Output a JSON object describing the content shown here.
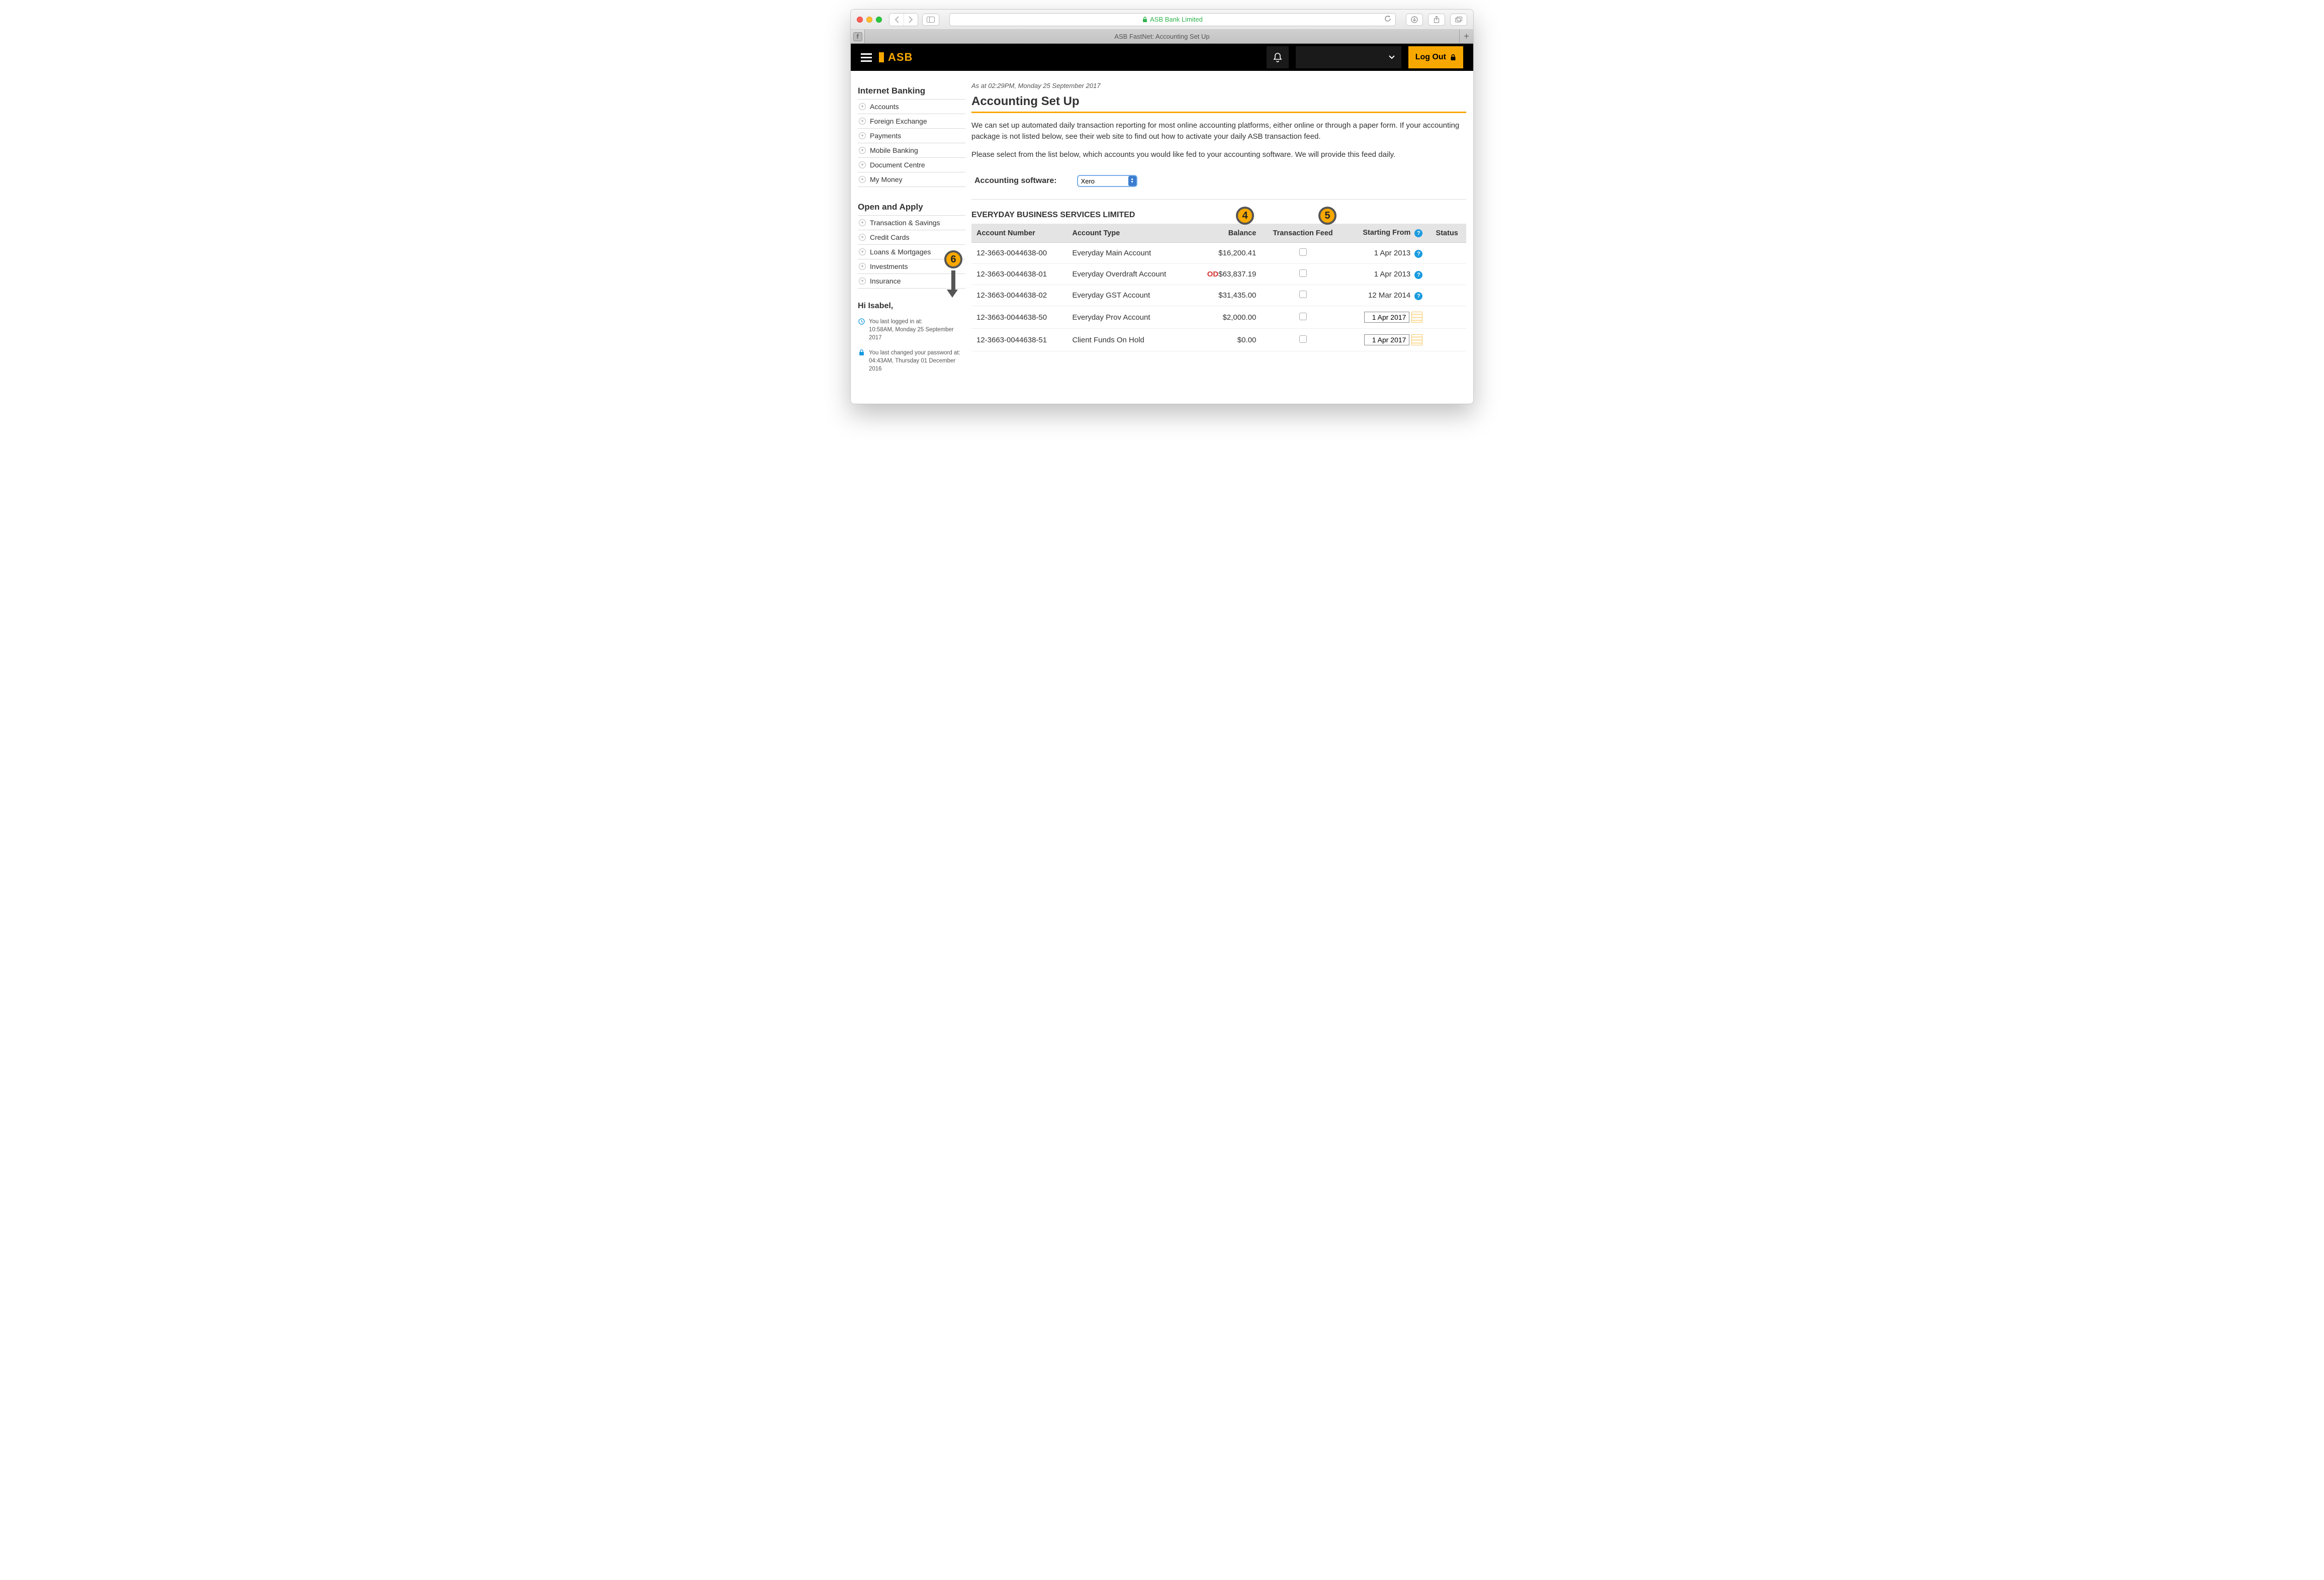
{
  "browser": {
    "site_name": "ASB Bank Limited",
    "tab_title": "ASB FastNet: Accounting Set Up"
  },
  "header": {
    "logo_text": "ASB",
    "logout_label": "Log Out"
  },
  "sidebar": {
    "section1_title": "Internet Banking",
    "section1_items": [
      "Accounts",
      "Foreign Exchange",
      "Payments",
      "Mobile Banking",
      "Document Centre",
      "My Money"
    ],
    "section2_title": "Open and Apply",
    "section2_items": [
      "Transaction & Savings",
      "Credit Cards",
      "Loans & Mortgages",
      "Investments",
      "Insurance"
    ],
    "greeting": "Hi Isabel,",
    "login_meta_label": "You last logged in at:",
    "login_meta_value": "10:58AM, Monday 25 September 2017",
    "pw_meta_label": "You last changed your password at:",
    "pw_meta_value": "04:43AM, Thursday 01 December 2016"
  },
  "content": {
    "timestamp": "As at 02:29PM, Monday 25 September 2017",
    "title": "Accounting Set Up",
    "para1": "We can set up automated daily transaction reporting for most online accounting platforms, either online or through a paper form. If your accounting package is not listed below, see their web site to find out how to activate your daily ASB transaction feed.",
    "para2": "Please select from the list below, which accounts you would like fed to your accounting software. We will provide this feed daily.",
    "software_label": "Accounting software:",
    "software_selected": "Xero",
    "entity_name": "EVERYDAY BUSINESS SERVICES LIMITED",
    "columns": {
      "acct_num": "Account Number",
      "acct_type": "Account Type",
      "balance": "Balance",
      "trans_feed": "Transaction Feed",
      "starting_from": "Starting From",
      "status": "Status"
    },
    "rows": [
      {
        "num": "12-3663-0044638-00",
        "type": "Everyday Main Account",
        "bal": "$16,200.41",
        "od": false,
        "start": "1 Apr 2013",
        "locked": true
      },
      {
        "num": "12-3663-0044638-01",
        "type": "Everyday Overdraft Account",
        "bal": "$63,837.19",
        "od": true,
        "start": "1 Apr 2013",
        "locked": true
      },
      {
        "num": "12-3663-0044638-02",
        "type": "Everyday GST Account",
        "bal": "$31,435.00",
        "od": false,
        "start": "12 Mar 2014",
        "locked": true
      },
      {
        "num": "12-3663-0044638-50",
        "type": "Everyday Prov Account",
        "bal": "$2,000.00",
        "od": false,
        "start": "1 Apr 2017",
        "locked": false
      },
      {
        "num": "12-3663-0044638-51",
        "type": "Client Funds On Hold",
        "bal": "$0.00",
        "od": false,
        "start": "1 Apr 2017",
        "locked": false
      }
    ]
  },
  "annotations": {
    "a4": "4",
    "a5": "5",
    "a6": "6"
  },
  "colors": {
    "accent": "#f7a800",
    "overdraft": "#d43030",
    "help": "#1a9be0"
  }
}
